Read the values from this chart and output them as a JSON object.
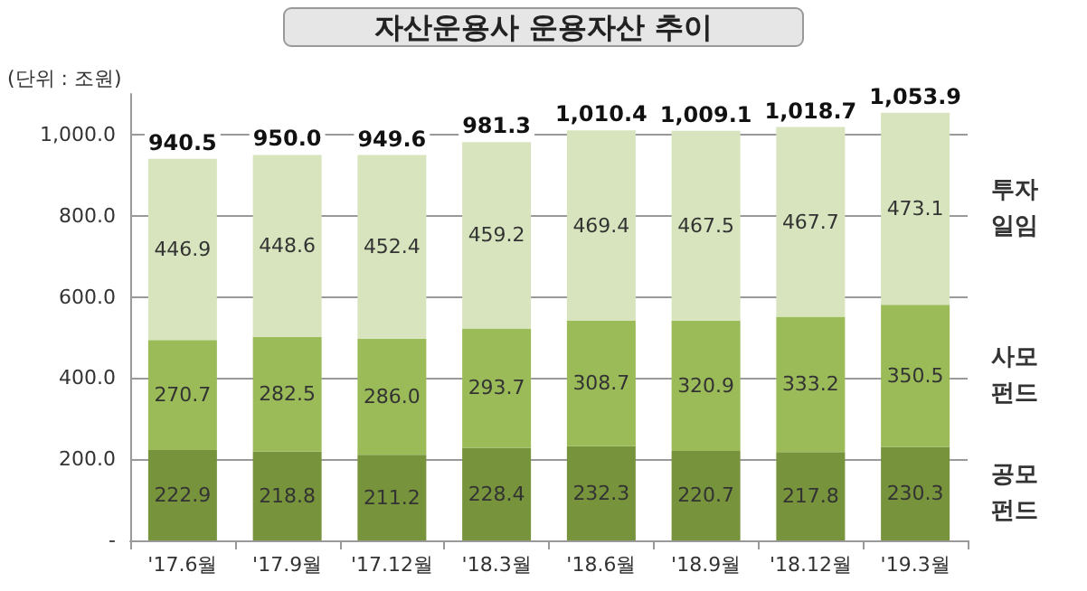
{
  "chart_data": {
    "type": "bar",
    "title": "자산운용사 운용자산 추이",
    "ylabel": "(단위 : 조원)",
    "stacked": true,
    "grid": "y",
    "legend": false,
    "categories": [
      "'17.6월",
      "'17.9월",
      "'17.12월",
      "'18.3월",
      "'18.6월",
      "'18.9월",
      "'18.12월",
      "'19.3월"
    ],
    "series": [
      {
        "name": "공모펀드",
        "color": "#77933c",
        "values": [
          222.9,
          218.8,
          211.2,
          228.4,
          232.3,
          220.7,
          217.8,
          230.3
        ],
        "value_labels": [
          "222.9",
          "218.8",
          "211.2",
          "228.4",
          "232.3",
          "220.7",
          "217.8",
          "230.3"
        ]
      },
      {
        "name": "사모펀드",
        "color": "#9bbb59",
        "values": [
          270.7,
          282.5,
          286.0,
          293.7,
          308.7,
          320.9,
          333.2,
          350.5
        ],
        "value_labels": [
          "270.7",
          "282.5",
          "286.0",
          "293.7",
          "308.7",
          "320.9",
          "333.2",
          "350.5"
        ]
      },
      {
        "name": "투자일임",
        "color": "#d7e4bd",
        "values": [
          446.9,
          448.6,
          452.4,
          459.2,
          469.4,
          467.5,
          467.7,
          473.1
        ],
        "value_labels": [
          "446.9",
          "448.6",
          "452.4",
          "459.2",
          "469.4",
          "467.5",
          "467.7",
          "473.1"
        ]
      }
    ],
    "totals": [
      "940.5",
      "950.0",
      "949.6",
      "981.3",
      "1,010.4",
      "1,009.1",
      "1,018.7",
      "1,053.9"
    ],
    "ylim": [
      0,
      1100
    ],
    "yticks": [
      {
        "value": 0,
        "label": "-"
      },
      {
        "value": 200,
        "label": "200.0"
      },
      {
        "value": 400,
        "label": "400.0"
      },
      {
        "value": 600,
        "label": "600.0"
      },
      {
        "value": 800,
        "label": "800.0"
      },
      {
        "value": 1000,
        "label": "1,000.0"
      }
    ]
  }
}
